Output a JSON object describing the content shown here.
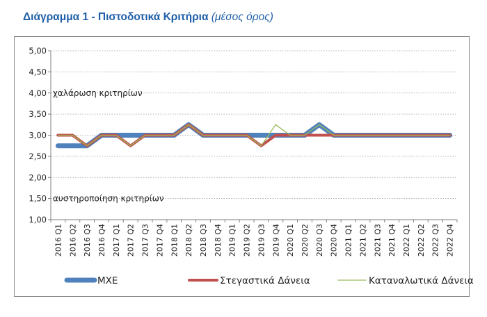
{
  "title": {
    "main": "Διάγραμμα 1 - Πιστοδοτικά Κριτήρια",
    "sub": "(μέσος όρος)"
  },
  "chart_data": {
    "type": "line",
    "ylim": [
      1.0,
      5.0
    ],
    "yticks": [
      "1,00",
      "1,50",
      "2,00",
      "2,50",
      "3,00",
      "3,50",
      "4,00",
      "4,50",
      "5,00"
    ],
    "grid": true,
    "legend_position": "bottom",
    "annotations": [
      "χαλάρωση κριτηρίων",
      "αυστηροποίηση κριτηρίων"
    ],
    "categories": [
      "2016 Q1",
      "2016 Q2",
      "2016 Q3",
      "2016 Q4",
      "2017 Q1",
      "2017 Q2",
      "2017 Q3",
      "2017 Q4",
      "2018 Q1",
      "2018 Q2",
      "2018 Q3",
      "2018 Q4",
      "2019 Q1",
      "2019 Q2",
      "2019 Q3",
      "2019 Q4",
      "2020 Q1",
      "2020 Q2",
      "2020 Q3",
      "2020 Q4",
      "2021 Q1",
      "2021 Q2",
      "2021 Q3",
      "2021 Q4",
      "2022 Q1",
      "2022 Q2",
      "2022 Q3",
      "2022 Q4"
    ],
    "series": [
      {
        "name": "ΜΧΕ",
        "color": "#4f81bd",
        "values": [
          2.75,
          2.75,
          2.75,
          3.0,
          3.0,
          3.0,
          3.0,
          3.0,
          3.0,
          3.25,
          3.0,
          3.0,
          3.0,
          3.0,
          3.0,
          3.0,
          3.0,
          3.0,
          3.25,
          3.0,
          3.0,
          3.0,
          3.0,
          3.0,
          3.0,
          3.0,
          3.0,
          3.0
        ]
      },
      {
        "name": "Στεγαστικά Δάνεια",
        "color": "#c0504d",
        "values": [
          3.0,
          3.0,
          2.75,
          3.0,
          3.0,
          2.75,
          3.0,
          3.0,
          3.0,
          3.25,
          3.0,
          3.0,
          3.0,
          3.0,
          2.75,
          3.0,
          3.0,
          3.0,
          3.0,
          3.0,
          3.0,
          3.0,
          3.0,
          3.0,
          3.0,
          3.0,
          3.0,
          3.0
        ]
      },
      {
        "name": "Καταναλωτικά Δάνεια",
        "color": "#9bbb59",
        "values": [
          3.0,
          3.0,
          2.75,
          3.0,
          3.0,
          2.75,
          3.0,
          3.0,
          3.0,
          3.25,
          3.0,
          3.0,
          3.0,
          3.0,
          2.75,
          3.25,
          3.0,
          3.0,
          3.25,
          3.0,
          3.0,
          3.0,
          3.0,
          3.0,
          3.0,
          3.0,
          3.0,
          3.0
        ]
      }
    ]
  }
}
